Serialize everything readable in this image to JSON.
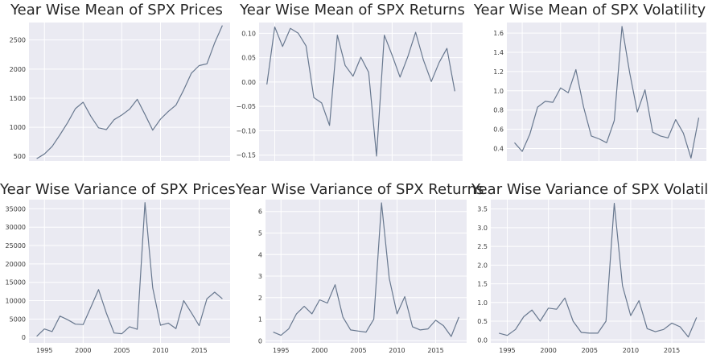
{
  "colors": {
    "plot_bg": "#eaeaf2",
    "grid": "#ffffff",
    "line": "#68788f"
  },
  "chart_data": [
    {
      "type": "line",
      "title": "Year Wise Mean of SPX Prices",
      "x": [
        1994,
        1995,
        1996,
        1997,
        1998,
        1999,
        2000,
        2001,
        2002,
        2003,
        2004,
        2005,
        2006,
        2007,
        2008,
        2009,
        2010,
        2011,
        2012,
        2013,
        2014,
        2015,
        2016,
        2017,
        2018
      ],
      "series": [
        {
          "values": [
            460,
            540,
            670,
            870,
            1080,
            1320,
            1430,
            1190,
            990,
            960,
            1130,
            1210,
            1310,
            1480,
            1220,
            950,
            1140,
            1270,
            1380,
            1640,
            1930,
            2060,
            2090,
            2450,
            2750
          ]
        }
      ],
      "xlim": [
        1993,
        2019
      ],
      "ylim": [
        420,
        2800
      ],
      "xticks": [
        1995,
        2000,
        2005,
        2010,
        2015
      ],
      "xtick_labels": [
        "",
        "",
        "",
        "",
        ""
      ],
      "yticks": [
        500,
        1000,
        1500,
        2000,
        2500
      ],
      "ytick_labels": [
        "500",
        "1000",
        "1500",
        "2000",
        "2500"
      ],
      "grid": true
    },
    {
      "type": "line",
      "title": "Year Wise Mean of SPX Returns",
      "x": [
        1994,
        1995,
        1996,
        1997,
        1998,
        1999,
        2000,
        2001,
        2002,
        2003,
        2004,
        2005,
        2006,
        2007,
        2008,
        2009,
        2010,
        2011,
        2012,
        2013,
        2014,
        2015,
        2016,
        2017,
        2018
      ],
      "series": [
        {
          "values": [
            -0.005,
            0.113,
            0.073,
            0.11,
            0.1,
            0.074,
            -0.032,
            -0.043,
            -0.089,
            0.096,
            0.034,
            0.012,
            0.051,
            0.02,
            -0.152,
            0.096,
            0.055,
            0.01,
            0.052,
            0.102,
            0.045,
            0.001,
            0.04,
            0.069,
            -0.019
          ]
        }
      ],
      "xlim": [
        1993,
        2019
      ],
      "ylim": [
        -0.162,
        0.122
      ],
      "xticks": [
        1995,
        2000,
        2005,
        2010,
        2015
      ],
      "xtick_labels": [
        "",
        "",
        "",
        "",
        ""
      ],
      "yticks": [
        -0.15,
        -0.1,
        -0.05,
        0.0,
        0.05,
        0.1
      ],
      "ytick_labels": [
        "−0.15",
        "−0.10",
        "−0.05",
        "0.00",
        "0.05",
        "0.10"
      ],
      "grid": true
    },
    {
      "type": "line",
      "title": "Year Wise Mean of SPX Volatility",
      "x": [
        1994,
        1995,
        1996,
        1997,
        1998,
        1999,
        2000,
        2001,
        2002,
        2003,
        2004,
        2005,
        2006,
        2007,
        2008,
        2009,
        2010,
        2011,
        2012,
        2013,
        2014,
        2015,
        2016,
        2017,
        2018
      ],
      "series": [
        {
          "values": [
            0.46,
            0.37,
            0.55,
            0.83,
            0.89,
            0.88,
            1.03,
            0.98,
            1.22,
            0.83,
            0.53,
            0.5,
            0.46,
            0.69,
            1.67,
            1.19,
            0.78,
            1.01,
            0.57,
            0.53,
            0.51,
            0.7,
            0.56,
            0.3,
            0.72
          ]
        }
      ],
      "xlim": [
        1993,
        2019
      ],
      "ylim": [
        0.27,
        1.71
      ],
      "xticks": [
        1995,
        2000,
        2005,
        2010,
        2015
      ],
      "xtick_labels": [
        "",
        "",
        "",
        "",
        ""
      ],
      "yticks": [
        0.4,
        0.6,
        0.8,
        1.0,
        1.2,
        1.4,
        1.6
      ],
      "ytick_labels": [
        "0.4",
        "0.6",
        "0.8",
        "1.0",
        "1.2",
        "1.4",
        "1.6"
      ],
      "grid": true
    },
    {
      "type": "line",
      "title": "Year Wise Variance of SPX Prices",
      "x": [
        1994,
        1995,
        1996,
        1997,
        1998,
        1999,
        2000,
        2001,
        2002,
        2003,
        2004,
        2005,
        2006,
        2007,
        2008,
        2009,
        2010,
        2011,
        2012,
        2013,
        2014,
        2015,
        2016,
        2017,
        2018
      ],
      "series": [
        {
          "values": [
            300,
            2300,
            1600,
            5800,
            4800,
            3600,
            3500,
            8200,
            13000,
            6600,
            1200,
            1000,
            2900,
            2200,
            36700,
            13500,
            3300,
            3900,
            2400,
            10000,
            6700,
            3200,
            10500,
            12300,
            10500
          ]
        }
      ],
      "xlim": [
        1993,
        2019
      ],
      "ylim": [
        -1500,
        37500
      ],
      "xticks": [
        1995,
        2000,
        2005,
        2010,
        2015
      ],
      "xtick_labels": [
        "1995",
        "2000",
        "2005",
        "2010",
        "2015"
      ],
      "yticks": [
        0,
        5000,
        10000,
        15000,
        20000,
        25000,
        30000,
        35000
      ],
      "ytick_labels": [
        "0",
        "5000",
        "10000",
        "15000",
        "20000",
        "25000",
        "30000",
        "35000"
      ],
      "grid": true
    },
    {
      "type": "line",
      "title": "Year Wise Variance of SPX Returns",
      "x": [
        1994,
        1995,
        1996,
        1997,
        1998,
        1999,
        2000,
        2001,
        2002,
        2003,
        2004,
        2005,
        2006,
        2007,
        2008,
        2009,
        2010,
        2011,
        2012,
        2013,
        2014,
        2015,
        2016,
        2017,
        2018
      ],
      "series": [
        {
          "values": [
            0.4,
            0.25,
            0.55,
            1.25,
            1.6,
            1.25,
            1.9,
            1.75,
            2.6,
            1.1,
            0.5,
            0.45,
            0.4,
            1.0,
            6.4,
            2.9,
            1.25,
            2.05,
            0.65,
            0.5,
            0.55,
            0.95,
            0.7,
            0.2,
            1.1
          ]
        }
      ],
      "xlim": [
        1993,
        2019
      ],
      "ylim": [
        -0.1,
        6.55
      ],
      "xticks": [
        1995,
        2000,
        2005,
        2010,
        2015
      ],
      "xtick_labels": [
        "1995",
        "2000",
        "2005",
        "2010",
        "2015"
      ],
      "yticks": [
        0,
        1,
        2,
        3,
        4,
        5,
        6
      ],
      "ytick_labels": [
        "0",
        "1",
        "2",
        "3",
        "4",
        "5",
        "6"
      ],
      "grid": true
    },
    {
      "type": "line",
      "title": "Year Wise Variance of SPX Volatility",
      "x": [
        1994,
        1995,
        1996,
        1997,
        1998,
        1999,
        2000,
        2001,
        2002,
        2003,
        2004,
        2005,
        2006,
        2007,
        2008,
        2009,
        2010,
        2011,
        2012,
        2013,
        2014,
        2015,
        2016,
        2017,
        2018
      ],
      "series": [
        {
          "values": [
            0.18,
            0.12,
            0.28,
            0.62,
            0.8,
            0.5,
            0.85,
            0.82,
            1.12,
            0.5,
            0.2,
            0.18,
            0.18,
            0.5,
            3.65,
            1.45,
            0.65,
            1.05,
            0.3,
            0.22,
            0.28,
            0.45,
            0.35,
            0.08,
            0.6
          ]
        }
      ],
      "xlim": [
        1993,
        2019
      ],
      "ylim": [
        -0.08,
        3.75
      ],
      "xticks": [
        1995,
        2000,
        2005,
        2010,
        2015
      ],
      "xtick_labels": [
        "1995",
        "2000",
        "2005",
        "2010",
        "2015"
      ],
      "yticks": [
        0.0,
        0.5,
        1.0,
        1.5,
        2.0,
        2.5,
        3.0,
        3.5
      ],
      "ytick_labels": [
        "0.0",
        "0.5",
        "1.0",
        "1.5",
        "2.0",
        "2.5",
        "3.0",
        "3.5"
      ],
      "grid": true
    }
  ]
}
